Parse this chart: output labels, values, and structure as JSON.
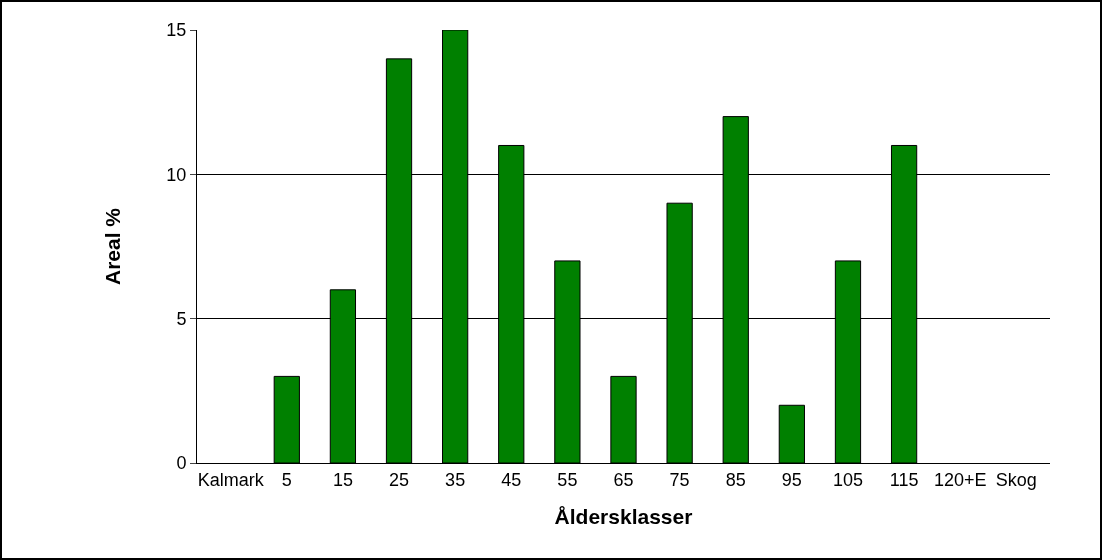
{
  "chart_data": {
    "type": "bar",
    "xlabel": "Åldersklasser",
    "ylabel": "Areal %",
    "categories": [
      "Kalmark",
      "5",
      "15",
      "25",
      "35",
      "45",
      "55",
      "65",
      "75",
      "85",
      "95",
      "105",
      "115",
      "120+E",
      "Skog"
    ],
    "values": [
      0,
      3,
      6,
      14,
      15,
      11,
      7,
      3,
      9,
      12,
      2,
      7,
      11,
      0,
      0
    ],
    "color": "#008000",
    "ylim": [
      0,
      15
    ],
    "yticks": [
      0,
      5,
      10,
      15
    ],
    "grid": "y"
  }
}
